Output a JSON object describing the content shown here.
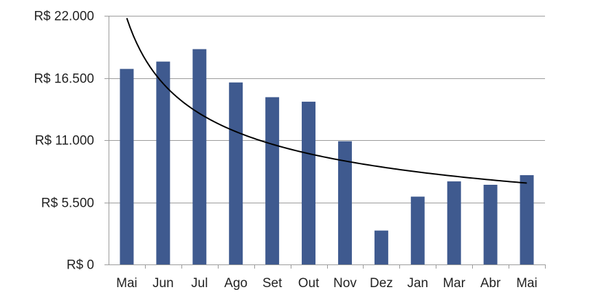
{
  "chart_data": {
    "type": "bar",
    "categories": [
      "Mai",
      "Jun",
      "Jul",
      "Ago",
      "Set",
      "Out",
      "Nov",
      "Dez",
      "Jan",
      "Mar",
      "Abr",
      "Mai"
    ],
    "series": [
      {
        "values": [
          17300,
          17950,
          19050,
          16100,
          14800,
          14400,
          10900,
          3000,
          6000,
          7350,
          7050,
          7900
        ]
      }
    ],
    "trendline": {
      "type": "power",
      "from": 21800,
      "to": 7200
    },
    "yticks": [
      "R$ 0",
      "R$ 5.500",
      "R$ 11.000",
      "R$ 16.500",
      "R$ 22.000"
    ],
    "ytick_values": [
      0,
      5500,
      11000,
      16500,
      22000
    ],
    "ylim": [
      0,
      22000
    ],
    "title": "",
    "xlabel": "",
    "ylabel": "",
    "grid": true,
    "legend": "none",
    "colors": {
      "bar": "#3f5a8f",
      "trend": "#000000",
      "grid": "#9a9a9a"
    }
  }
}
